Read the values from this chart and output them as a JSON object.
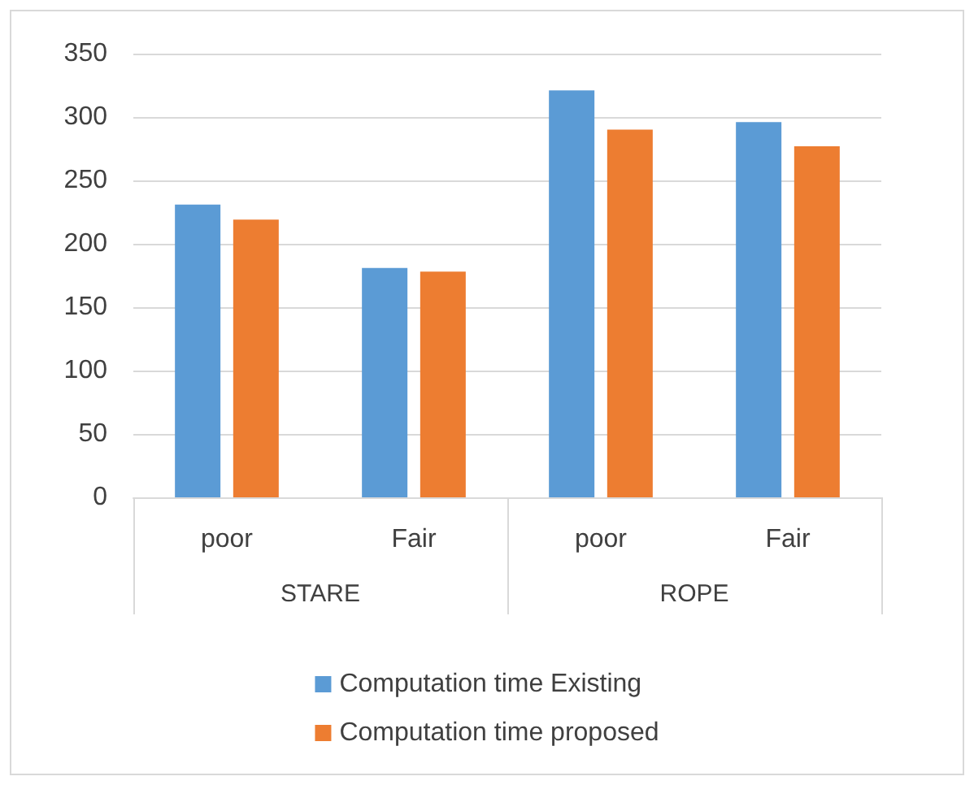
{
  "chart_data": {
    "type": "bar",
    "categories": [
      "poor",
      "Fair",
      "poor",
      "Fair"
    ],
    "series": [
      {
        "name": "Computation time Existing",
        "color": "#5b9bd5",
        "values": [
          231,
          181,
          321,
          296
        ]
      },
      {
        "name": "Computation time proposed",
        "color": "#ed7d31",
        "values": [
          219,
          178,
          290,
          277
        ]
      }
    ],
    "annotations": [
      "STARE",
      "ROPE"
    ],
    "ylim": [
      0,
      350
    ],
    "yticks": [
      0,
      50,
      100,
      150,
      200,
      250,
      300,
      350
    ],
    "grid": "y",
    "legend": "bottom"
  }
}
